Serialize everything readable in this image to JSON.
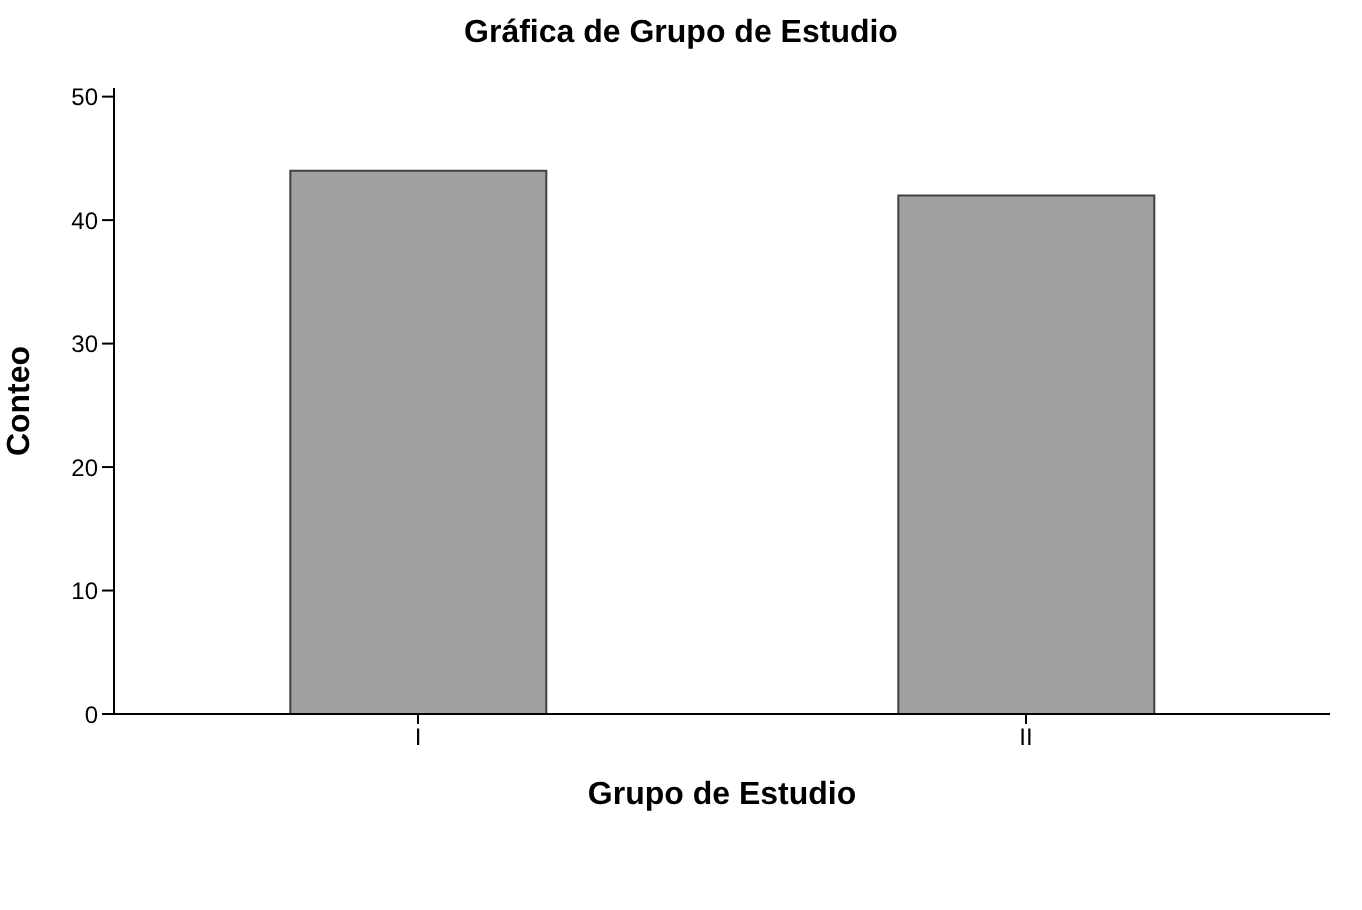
{
  "chart_data": {
    "type": "bar",
    "title": "Gráfica de Grupo de Estudio",
    "xlabel": "Grupo de Estudio",
    "ylabel": "Conteo",
    "categories": [
      "I",
      "II"
    ],
    "values": [
      44,
      42
    ],
    "color": "#a0a0a0",
    "ylim": [
      0,
      50.7
    ],
    "yticks": [
      0,
      10,
      20,
      30,
      40,
      50
    ],
    "grid": false
  }
}
